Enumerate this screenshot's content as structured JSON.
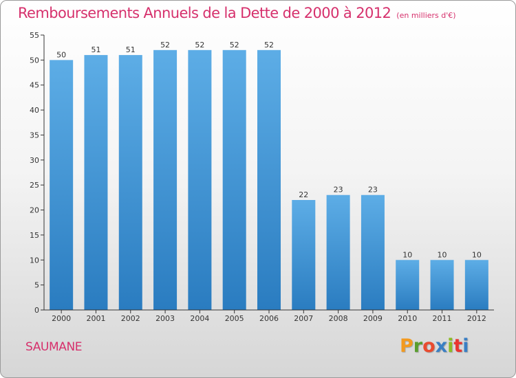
{
  "chart_data": {
    "type": "bar",
    "title": "Remboursements Annuels de la Dette de 2000 à 2012",
    "subtitle": "(en milliers d'€)",
    "categories": [
      "2000",
      "2001",
      "2002",
      "2003",
      "2004",
      "2005",
      "2006",
      "2007",
      "2008",
      "2009",
      "2010",
      "2011",
      "2012"
    ],
    "values": [
      50,
      51,
      51,
      52,
      52,
      52,
      52,
      22,
      23,
      23,
      10,
      10,
      10
    ],
    "ylim": [
      0,
      55
    ],
    "yticks": [
      0,
      5,
      10,
      15,
      20,
      25,
      30,
      35,
      40,
      45,
      50,
      55
    ],
    "grid": false,
    "bar_color_top": "#5dade6",
    "bar_color_bottom": "#2a7cc0"
  },
  "footer": {
    "commune": "SAUMANE",
    "brand": [
      "P",
      "r",
      "o",
      "x",
      "i",
      "t",
      "i"
    ],
    "brand_colors": [
      "#f39a1f",
      "#5a9e2f",
      "#e94b2f",
      "#3a7fc4",
      "#8dbb25",
      "#e9342f",
      "#3a7fc4"
    ]
  },
  "colors": {
    "title": "#d6306c",
    "axis": "#333333"
  }
}
